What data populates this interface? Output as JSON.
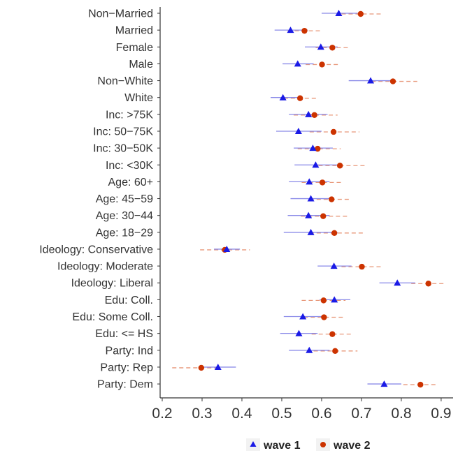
{
  "chart_data": {
    "type": "scatter",
    "orientation": "horizontal",
    "title": "",
    "xlabel": "",
    "ylabel": "",
    "xlim": [
      0.2,
      0.93
    ],
    "x_ticks": [
      0.2,
      0.3,
      0.4,
      0.5,
      0.6,
      0.7,
      0.8,
      0.9
    ],
    "x_tick_labels": [
      "0.2",
      "0.3",
      "0.4",
      "0.5",
      "0.6",
      "0.7",
      "0.8",
      "0.9"
    ],
    "grid": false,
    "legend_position": "bottom",
    "categories": [
      "Non−Married",
      "Married",
      "Female",
      "Male",
      "Non−White",
      "White",
      "Inc: >75K",
      "Inc: 50−75K",
      "Inc: 30−50K",
      "Inc: <30K",
      "Age: 60+",
      "Age: 45−59",
      "Age: 30−44",
      "Age: 18−29",
      "Ideology: Conservative",
      "Ideology: Moderate",
      "Ideology: Liberal",
      "Edu: Coll.",
      "Edu: Some Coll.",
      "Edu: <= HS",
      "Party: Ind",
      "Party: Rep",
      "Party: Dem"
    ],
    "series": [
      {
        "name": "wave 1",
        "color": "#1a1ae6",
        "marker": "triangle",
        "values": [
          0.643,
          0.522,
          0.598,
          0.54,
          0.723,
          0.503,
          0.567,
          0.542,
          0.578,
          0.585,
          0.569,
          0.573,
          0.567,
          0.573,
          0.362,
          0.631,
          0.79,
          0.632,
          0.553,
          0.543,
          0.569,
          0.34,
          0.757
        ],
        "lower": [
          0.6,
          0.482,
          0.558,
          0.502,
          0.668,
          0.472,
          0.518,
          0.486,
          0.53,
          0.532,
          0.518,
          0.522,
          0.515,
          0.505,
          0.33,
          0.59,
          0.745,
          0.595,
          0.505,
          0.496,
          0.518,
          0.3,
          0.715
        ],
        "upper": [
          0.69,
          0.565,
          0.64,
          0.58,
          0.78,
          0.54,
          0.615,
          0.6,
          0.628,
          0.64,
          0.62,
          0.625,
          0.62,
          0.64,
          0.395,
          0.675,
          0.835,
          0.672,
          0.6,
          0.59,
          0.62,
          0.385,
          0.8
        ]
      },
      {
        "name": "wave 2",
        "color": "#cc3300",
        "marker": "circle",
        "values": [
          0.698,
          0.557,
          0.627,
          0.601,
          0.779,
          0.546,
          0.582,
          0.63,
          0.59,
          0.646,
          0.602,
          0.625,
          0.604,
          0.632,
          0.357,
          0.701,
          0.868,
          0.605,
          0.606,
          0.627,
          0.634,
          0.298,
          0.848
        ],
        "lower": [
          0.65,
          0.515,
          0.585,
          0.56,
          0.725,
          0.505,
          0.53,
          0.57,
          0.54,
          0.592,
          0.55,
          0.57,
          0.548,
          0.57,
          0.295,
          0.65,
          0.825,
          0.55,
          0.555,
          0.575,
          0.58,
          0.225,
          0.805
        ],
        "upper": [
          0.755,
          0.602,
          0.67,
          0.642,
          0.84,
          0.59,
          0.64,
          0.695,
          0.648,
          0.708,
          0.655,
          0.675,
          0.665,
          0.705,
          0.42,
          0.752,
          0.91,
          0.66,
          0.658,
          0.68,
          0.69,
          0.345,
          0.89
        ]
      }
    ]
  }
}
